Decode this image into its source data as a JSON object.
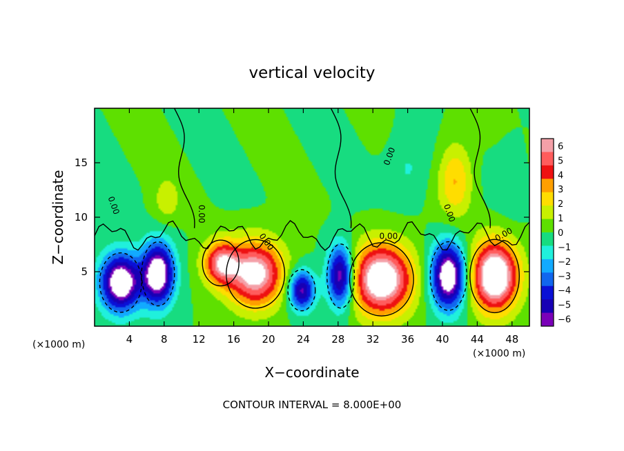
{
  "chart_data": {
    "type": "heatmap",
    "title": "vertical velocity",
    "xlabel": "X−coordinate",
    "ylabel": "Z−coordinate",
    "x_unit_left": "(×1000 m)",
    "x_unit_right": "(×1000 m)",
    "footer": "CONTOUR INTERVAL = 8.000E+00",
    "xlim": [
      0,
      50
    ],
    "ylim": [
      0,
      20
    ],
    "x_ticks": [
      4,
      8,
      12,
      16,
      20,
      24,
      28,
      32,
      36,
      40,
      44,
      48
    ],
    "y_ticks": [
      5,
      10,
      15
    ],
    "contour_labels": [
      "0.00",
      "0.00",
      "0.00",
      "0.00",
      "0.00",
      "0.00",
      "0.00"
    ],
    "colorbar": {
      "ticks": [
        6,
        5,
        4,
        3,
        2,
        1,
        0,
        -1,
        -2,
        -3,
        -4,
        -5,
        -6
      ],
      "colors": [
        "#f4a0a8",
        "#ff5c5c",
        "#ee1111",
        "#ff9f00",
        "#ffdd00",
        "#c8f000",
        "#5ee000",
        "#17dc80",
        "#20f0dc",
        "#12aaff",
        "#1166ee",
        "#0a10d6",
        "#1800b4",
        "#7a00b8"
      ]
    },
    "updraft_cells": [
      {
        "x": 18.5,
        "z": 4.8,
        "rx": 3.2,
        "rz": 3.0,
        "amp": 7
      },
      {
        "x": 14.5,
        "z": 5.8,
        "rx": 2.0,
        "rz": 2.0,
        "amp": 5.5
      },
      {
        "x": 33.0,
        "z": 4.3,
        "rx": 3.5,
        "rz": 3.2,
        "amp": 8
      },
      {
        "x": 46.0,
        "z": 4.6,
        "rx": 2.7,
        "rz": 3.2,
        "amp": 8.5
      },
      {
        "x": 41.5,
        "z": 13.5,
        "rx": 2.0,
        "rz": 3.5,
        "amp": 3
      },
      {
        "x": 8.3,
        "z": 11.5,
        "rx": 1.5,
        "rz": 2.0,
        "amp": 1.5
      }
    ],
    "downdraft_cells": [
      {
        "x": 3.0,
        "z": 4.0,
        "rx": 2.3,
        "rz": 2.6,
        "amp": 8
      },
      {
        "x": 7.3,
        "z": 4.8,
        "rx": 1.8,
        "rz": 2.8,
        "amp": 8
      },
      {
        "x": 23.8,
        "z": 3.3,
        "rx": 1.5,
        "rz": 1.8,
        "amp": 6
      },
      {
        "x": 28.3,
        "z": 4.6,
        "rx": 1.5,
        "rz": 2.8,
        "amp": 7
      },
      {
        "x": 40.7,
        "z": 4.6,
        "rx": 2.0,
        "rz": 3.0,
        "amp": 8
      },
      {
        "x": 36.0,
        "z": 14.5,
        "rx": 2.5,
        "rz": 3.0,
        "amp": 1.3
      },
      {
        "x": 48.0,
        "z": 13.5,
        "rx": 2.0,
        "rz": 3.5,
        "amp": 1.0
      }
    ]
  }
}
